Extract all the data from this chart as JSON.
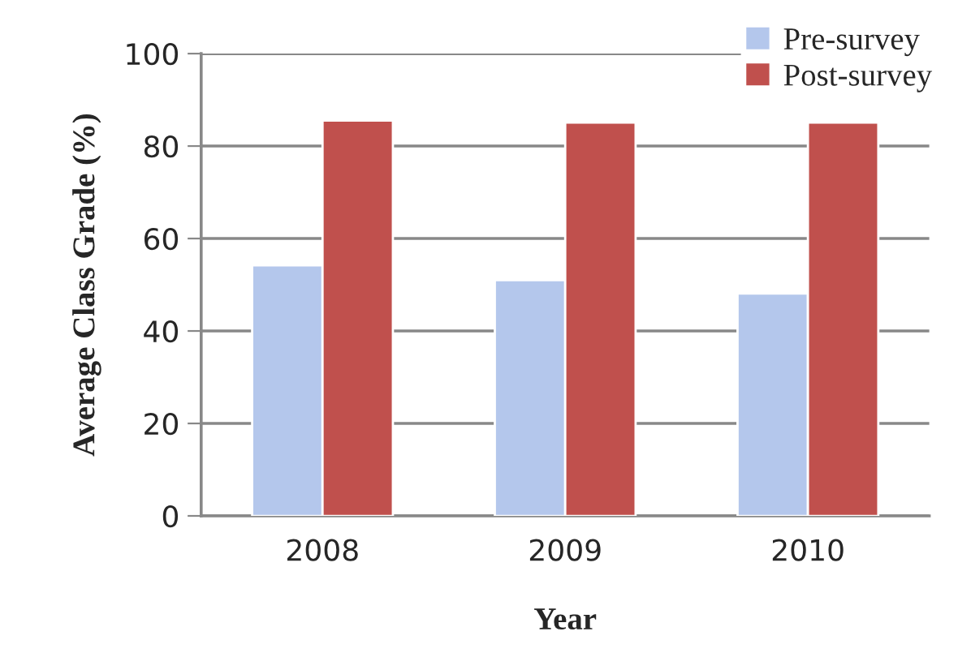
{
  "chart_data": {
    "type": "bar",
    "xlabel": "Year",
    "ylabel": "Average Class Grade (%)",
    "categories": [
      "2008",
      "2009",
      "2010"
    ],
    "series": [
      {
        "name": "Pre-survey",
        "color": "#b4c7ec",
        "values": [
          54.2,
          51.0,
          48.1
        ]
      },
      {
        "name": "Post-survey",
        "color": "#c0504d",
        "values": [
          85.5,
          85.1,
          85.1
        ]
      }
    ],
    "ylim": [
      0,
      100
    ],
    "yticks": [
      0,
      20,
      40,
      60,
      80,
      100
    ],
    "grid": "y",
    "legend": "top right"
  }
}
